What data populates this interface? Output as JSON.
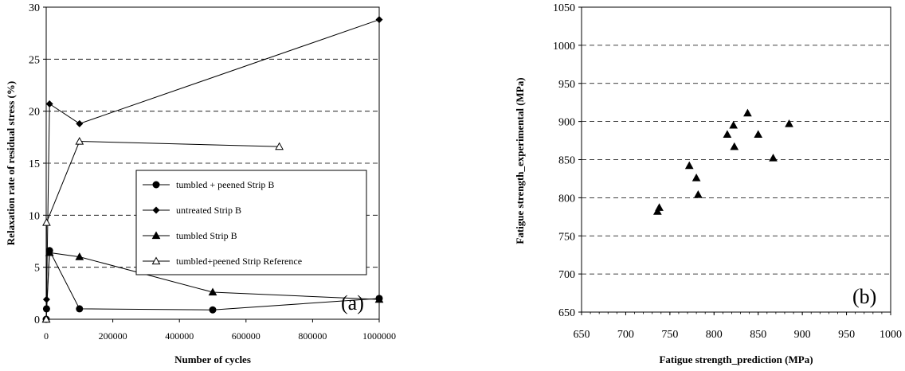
{
  "chart_data": [
    {
      "type": "line",
      "panel_label": "(a)",
      "xlabel": "Number of cycles",
      "ylabel": "Relaxation rate of residual stress  (%)",
      "xlim": [
        0,
        1000000
      ],
      "ylim": [
        0,
        30
      ],
      "x_ticks": [
        "0",
        "200000",
        "400000",
        "600000",
        "800000",
        "1000000"
      ],
      "y_ticks": [
        "0",
        "5",
        "10",
        "15",
        "20",
        "25",
        "30"
      ],
      "grid": "horizontal dashed",
      "legend_position": "center-right",
      "series": [
        {
          "name": "tumbled + peened Strip B",
          "marker": "circle-filled",
          "x": [
            1,
            1000,
            10000,
            100000,
            500000,
            1000000
          ],
          "y": [
            0,
            1.0,
            6.6,
            1.0,
            0.9,
            2.0
          ]
        },
        {
          "name": "untreated Strip B",
          "marker": "diamond-filled",
          "x": [
            1,
            1000,
            10000,
            100000,
            1000000
          ],
          "y": [
            0,
            1.9,
            20.7,
            18.8,
            28.8
          ]
        },
        {
          "name": "tumbled Strip B",
          "marker": "triangle-filled",
          "x": [
            1,
            10000,
            100000,
            500000,
            1000000
          ],
          "y": [
            0,
            6.4,
            6.0,
            2.6,
            1.9
          ]
        },
        {
          "name": "tumbled+peened Strip Reference",
          "marker": "triangle-open",
          "x": [
            1,
            1000,
            100000,
            700000
          ],
          "y": [
            0,
            9.3,
            17.1,
            16.6
          ]
        }
      ]
    },
    {
      "type": "scatter",
      "panel_label": "(b)",
      "xlabel": "Fatigue strength_prediction (MPa)",
      "ylabel": "Fatigue strength_experimental (MPa)",
      "xlim": [
        650,
        1000
      ],
      "ylim": [
        650,
        1050
      ],
      "x_ticks": [
        "650",
        "700",
        "750",
        "800",
        "850",
        "900",
        "950",
        "1000"
      ],
      "y_ticks": [
        "650",
        "700",
        "750",
        "800",
        "850",
        "900",
        "950",
        "1000",
        "1050"
      ],
      "grid": "horizontal dashed",
      "series": [
        {
          "marker": "triangle-filled",
          "x": [
            736,
            738,
            772,
            780,
            782,
            815,
            822,
            823,
            838,
            850,
            867,
            885
          ],
          "y": [
            782,
            787,
            842,
            826,
            804,
            883,
            895,
            867,
            911,
            883,
            852,
            897
          ]
        }
      ]
    }
  ]
}
